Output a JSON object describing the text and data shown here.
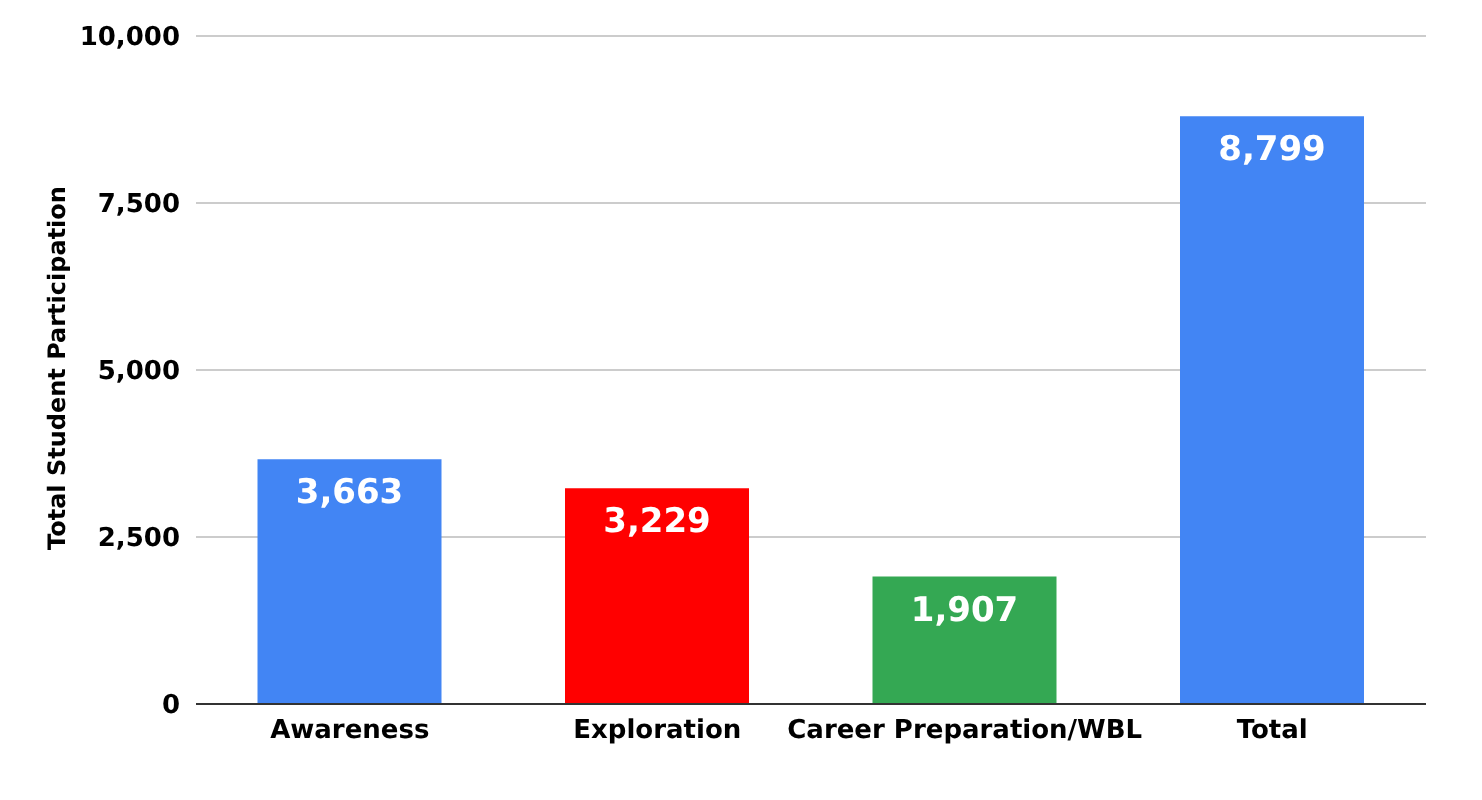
{
  "chart_data": {
    "type": "bar",
    "ylabel": "Total Student Participation",
    "categories": [
      "Awareness",
      "Exploration",
      "Career Preparation/WBL",
      "Total"
    ],
    "values": [
      3663,
      3229,
      1907,
      8799
    ],
    "colors": [
      "#4285f4",
      "#ff0000",
      "#34a853",
      "#4285f4"
    ],
    "value_labels": [
      "3,663",
      "3,229",
      "1,907",
      "8,799"
    ],
    "ylim": [
      0,
      10000
    ],
    "yticks": [
      {
        "value": 0,
        "label": "0"
      },
      {
        "value": 2500,
        "label": "2,500"
      },
      {
        "value": 5000,
        "label": "5,000"
      },
      {
        "value": 7500,
        "label": "7,500"
      },
      {
        "value": 10000,
        "label": "10,000"
      }
    ],
    "grid": "y"
  }
}
